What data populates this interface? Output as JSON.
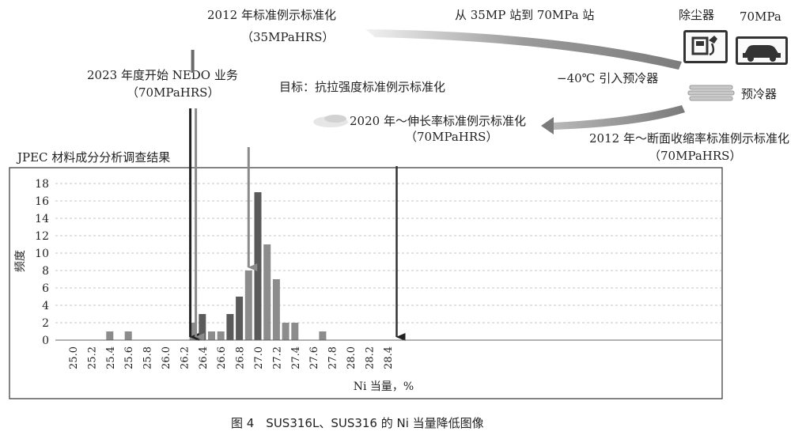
{
  "annotations": {
    "std_2012_title": "2012 年标准例示标准化",
    "std_2012_sub": "（35MPaHRS）",
    "station_upgrade": "从 35MP 站到 70MPa 站",
    "dust_collector": "除尘器",
    "pressure_70": "70MPa",
    "nedo_title": "2023 年度开始 NEDO 业务",
    "nedo_sub": "（70MPaHRS）",
    "target": "目标：抗拉强度标准例示标准化",
    "precooler_intro": "−40℃ 引入预冷器",
    "precooler": "预冷器",
    "elong_title": "2020 年～伸长率标准例示标准化",
    "elong_sub": "（70MPaHRS）",
    "area_title": "2012 年～断面收缩率标准例示标准化",
    "area_sub": "（70MPaHRS）",
    "jpec_title": "JPEC 材料成分分析调查结果"
  },
  "caption": "图 4　SUS316L、SUS316 的 Ni 当量降低图像",
  "chart_data": {
    "type": "bar",
    "title": "JPEC 材料成分分析调查结果",
    "xlabel": "Ni 当量，%",
    "ylabel": "频度",
    "ylim": [
      0,
      18
    ],
    "yticks": [
      0,
      2,
      4,
      6,
      8,
      10,
      12,
      14,
      16,
      18
    ],
    "xlim": [
      25.0,
      28.6
    ],
    "xticks": [
      "25.0",
      "25.2",
      "25.4",
      "25.6",
      "25.8",
      "26.0",
      "26.2",
      "26.4",
      "26.6",
      "26.8",
      "27.0",
      "27.2",
      "27.4",
      "27.6",
      "27.8",
      "28.0",
      "28.2",
      "28.4"
    ],
    "grid": true,
    "x": [
      25.4,
      25.6,
      26.3,
      26.4,
      26.5,
      26.6,
      26.7,
      26.8,
      26.9,
      27.0,
      27.1,
      27.2,
      27.3,
      27.4,
      27.7
    ],
    "values": [
      1,
      1,
      2,
      3,
      1,
      1,
      3,
      5,
      8,
      17,
      11,
      7,
      2,
      2,
      1
    ],
    "markers": [
      {
        "label": "目标：抗拉强度标准例示标准化",
        "x": 26.27
      },
      {
        "label": "2012 年标准例示标准化（35MPaHRS）",
        "x": 26.33
      },
      {
        "label": "2020 年～伸长率标准例示标准化（70MPaHRS）",
        "x": 26.9
      },
      {
        "label": "2012 年～断面收缩率标准例示标准化（70MPaHRS）",
        "x": 28.5
      }
    ],
    "colors": {
      "bar_dark": "#5a5a5a",
      "bar_light": "#8c8c8c",
      "arrow": "#222222",
      "arrow_gray": "#8a8a8a"
    }
  }
}
